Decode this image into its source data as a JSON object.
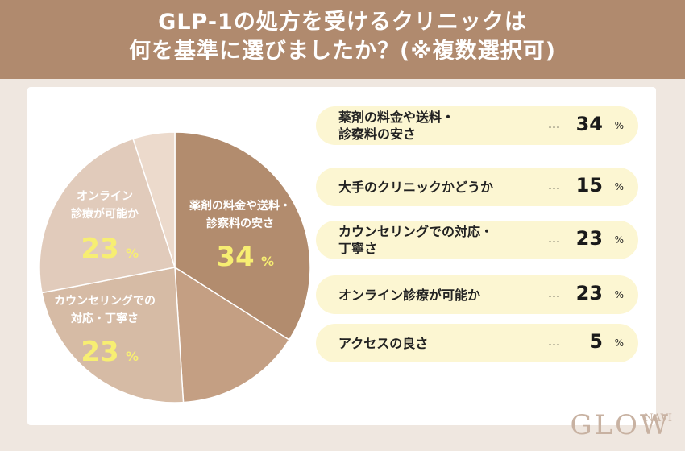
{
  "header": {
    "title_line1": "GLP-1の処方を受けるクリニックは",
    "title_line2": "何を基準に選びましたか？(※複数選択可)"
  },
  "chart_data": {
    "type": "pie",
    "title": "GLP-1の処方を受けるクリニックは何を基準に選びましたか？(※複数選択可)",
    "unit": "%",
    "slices": [
      {
        "label": "薬剤の料金や送料・診察料の安さ",
        "value": 34,
        "color": "#b28c6e"
      },
      {
        "label": "大手のクリニックかどうか",
        "value": 15,
        "color": "#c49f83"
      },
      {
        "label": "カウンセリングでの対応・丁寧さ",
        "value": 23,
        "color": "#d6bba5"
      },
      {
        "label": "オンライン診療が可能か",
        "value": 23,
        "color": "#e1cbbb"
      },
      {
        "label": "アクセスの良さ",
        "value": 5,
        "color": "#ecdacc"
      }
    ],
    "pie_labels": [
      {
        "lines": [
          "薬剤の料金や送料・",
          "診察料の安さ"
        ],
        "value": "34",
        "unit": "%"
      },
      {
        "lines": [
          "カウンセリングでの",
          "対応・丁寧さ"
        ],
        "value": "23",
        "unit": "%"
      },
      {
        "lines": [
          "オンライン",
          "診療が可能か"
        ],
        "value": "23",
        "unit": "%"
      }
    ]
  },
  "legend_rows": [
    {
      "label": "薬剤の料金や送料・\n診察料の安さ",
      "dots": "…",
      "value": "34",
      "unit": "%"
    },
    {
      "label": "大手のクリニックかどうか",
      "dots": "…",
      "value": "15",
      "unit": "%"
    },
    {
      "label": "カウンセリングでの対応・\n丁寧さ",
      "dots": "…",
      "value": "23",
      "unit": "%"
    },
    {
      "label": "オンライン診療が可能か",
      "dots": "…",
      "value": "23",
      "unit": "%"
    },
    {
      "label": "アクセスの良さ",
      "dots": "…",
      "value": "5",
      "unit": "%"
    }
  ],
  "logo": {
    "main": "GLOW",
    "sub": "NAVI"
  }
}
